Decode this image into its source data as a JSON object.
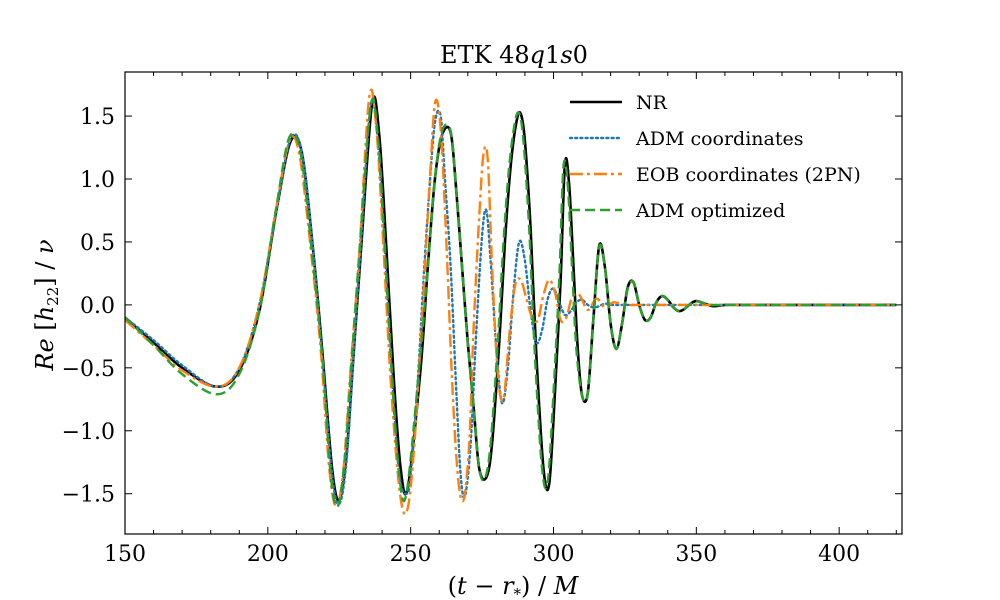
{
  "chart_data": {
    "type": "line",
    "title": "ETK 48q1s0",
    "title_parts": {
      "prefix": "ETK 48",
      "q": "q",
      "mid": "1",
      "s": "s",
      "suffix": "0"
    },
    "xlabel": "(t − r*) / M",
    "ylabel": "Re [h22] / ν",
    "xlabel_parts": {
      "open": "(",
      "t": "t",
      "minus": " − ",
      "r": "r",
      "sub": "*",
      "close": ")",
      "slash": " / ",
      "M": "M"
    },
    "ylabel_parts": {
      "Re": "Re",
      "lb": " [",
      "h": "h",
      "sub": "22",
      "rb": "]",
      "slash": " / ",
      "nu": "ν"
    },
    "xlim": [
      150,
      422
    ],
    "ylim": [
      -1.82,
      1.85
    ],
    "xticks": [
      150,
      200,
      250,
      300,
      350,
      400
    ],
    "xtick_labels": [
      "150",
      "200",
      "250",
      "300",
      "350",
      "400"
    ],
    "yticks": [
      -1.5,
      -1.0,
      -0.5,
      0.0,
      0.5,
      1.0,
      1.5
    ],
    "ytick_labels": [
      "−1.5",
      "−1.0",
      "−0.5",
      "0.0",
      "0.5",
      "1.0",
      "1.5"
    ],
    "legend_position": "top-right",
    "series": [
      {
        "name": "NR",
        "color": "#000000",
        "style": "solid",
        "x": [
          150,
          160,
          170,
          182,
          190,
          197,
          203,
          208,
          212,
          216,
          219,
          222.5,
          225,
          227.5,
          230,
          232.5,
          236.5,
          239,
          241.5,
          244,
          246.5,
          249,
          253.5,
          256,
          258.5,
          261,
          264,
          266,
          268,
          270,
          272,
          274,
          276.5,
          278.5,
          281,
          283,
          285,
          287,
          288.5,
          290,
          292,
          294,
          296.5,
          298.5,
          300.5,
          302.5,
          304,
          305.5,
          307,
          308.5,
          310,
          312,
          314,
          316,
          318,
          320,
          322,
          324,
          326,
          328,
          330,
          332,
          334,
          336,
          338,
          340,
          342,
          344,
          346,
          348,
          350,
          353,
          356,
          360,
          365,
          370,
          380,
          390,
          400,
          410,
          420
        ],
        "y": [
          -0.1,
          -0.3,
          -0.5,
          -0.65,
          -0.52,
          -0.05,
          0.75,
          1.3,
          1.2,
          0.4,
          -0.35,
          -1.3,
          -1.55,
          -1.2,
          -0.4,
          0.4,
          1.6,
          1.35,
          0.45,
          -0.55,
          -1.3,
          -1.45,
          -0.5,
          0.3,
          1.0,
          1.35,
          1.37,
          0.9,
          0.3,
          -0.3,
          -0.8,
          -1.3,
          -1.37,
          -1.1,
          -0.3,
          0.5,
          1.1,
          1.45,
          1.52,
          1.3,
          0.6,
          -0.4,
          -1.3,
          -1.42,
          -0.7,
          0.2,
          1.12,
          0.95,
          0.3,
          -0.35,
          -0.72,
          -0.7,
          -0.1,
          0.47,
          0.3,
          -0.15,
          -0.35,
          -0.15,
          0.14,
          0.18,
          0.0,
          -0.12,
          -0.1,
          0.02,
          0.07,
          0.04,
          -0.02,
          -0.05,
          -0.03,
          0.01,
          0.03,
          0.01,
          -0.01,
          0.0,
          0.0,
          0.0,
          0.0,
          0.0,
          0.0,
          0.0,
          0.0
        ]
      },
      {
        "name": "ADM coordinates",
        "color": "#1f77b4",
        "style": "dotted",
        "x": [
          150,
          160,
          170,
          182,
          190,
          197,
          203,
          208,
          212,
          216,
          219,
          222.5,
          225,
          227.5,
          230,
          232.5,
          236,
          238.5,
          241,
          243.5,
          246,
          248.5,
          250,
          252.5,
          254.5,
          256.5,
          258.5,
          260.5,
          262,
          264,
          266,
          267.5,
          269,
          271,
          273,
          275,
          276.5,
          278,
          280,
          282,
          284,
          286,
          288,
          290,
          292,
          294,
          296,
          298,
          300,
          302,
          304,
          306,
          308,
          310,
          312,
          314,
          316,
          318,
          320,
          325,
          330,
          340,
          350,
          360,
          370,
          380,
          390,
          400,
          410,
          420
        ],
        "y": [
          -0.1,
          -0.28,
          -0.48,
          -0.65,
          -0.5,
          0.0,
          0.75,
          1.32,
          1.2,
          0.4,
          -0.4,
          -1.35,
          -1.58,
          -1.25,
          -0.4,
          0.45,
          1.58,
          1.3,
          0.4,
          -0.6,
          -1.35,
          -1.5,
          -1.35,
          -0.6,
          0.2,
          0.9,
          1.45,
          1.5,
          1.0,
          0.3,
          -0.7,
          -1.35,
          -1.52,
          -1.1,
          -0.2,
          0.55,
          0.75,
          0.35,
          -0.35,
          -0.78,
          -0.5,
          0.1,
          0.5,
          0.35,
          -0.05,
          -0.3,
          -0.2,
          0.05,
          0.13,
          0.02,
          -0.08,
          -0.05,
          0.02,
          0.04,
          0.0,
          -0.02,
          -0.01,
          0.01,
          0.0,
          0.0,
          0.0,
          0.0,
          0.0,
          0.0,
          0.0,
          0.0,
          0.0,
          0.0,
          0.0,
          0.0
        ]
      },
      {
        "name": "EOB coordinates (2PN)",
        "color": "#ff7f0e",
        "style": "dashdot",
        "x": [
          150,
          160,
          170,
          182,
          190,
          197,
          203,
          207.5,
          211,
          215,
          218.5,
          221.5,
          224,
          226.5,
          229,
          232,
          235.5,
          238,
          240.5,
          243,
          246,
          248.5,
          251,
          254,
          256.5,
          258.5,
          260.5,
          262.5,
          264.5,
          266.5,
          268.5,
          270.5,
          272,
          274,
          275.5,
          277,
          278.5,
          280.5,
          282.5,
          284.5,
          286.5,
          288.5,
          290.5,
          292.5,
          294.5,
          296.5,
          298.5,
          300.5,
          302.5,
          304.5,
          306.5,
          309,
          312,
          315,
          318,
          321,
          325,
          330,
          340,
          350,
          360,
          370,
          380,
          390,
          400,
          410,
          420
        ],
        "y": [
          -0.12,
          -0.32,
          -0.52,
          -0.65,
          -0.5,
          0.0,
          0.78,
          1.3,
          1.2,
          0.45,
          -0.35,
          -1.3,
          -1.6,
          -1.3,
          -0.5,
          0.4,
          1.65,
          1.4,
          0.45,
          -0.6,
          -1.45,
          -1.65,
          -1.2,
          -0.1,
          0.9,
          1.6,
          1.4,
          0.5,
          -0.6,
          -1.35,
          -1.55,
          -1.1,
          -0.2,
          0.7,
          1.2,
          1.15,
          0.3,
          -0.55,
          -0.75,
          -0.25,
          0.15,
          0.2,
          0.05,
          -0.1,
          -0.12,
          0.08,
          0.2,
          0.1,
          -0.12,
          -0.1,
          0.06,
          0.08,
          -0.04,
          0.05,
          -0.02,
          0.02,
          0.0,
          0.0,
          0.0,
          0.0,
          0.0,
          0.0,
          0.0,
          0.0,
          0.0,
          0.0,
          0.0
        ]
      },
      {
        "name": "ADM optimized",
        "color": "#2ca02c",
        "style": "dashed",
        "x": [
          150,
          160,
          170,
          182,
          190,
          197,
          203,
          207.5,
          211.5,
          215.5,
          219,
          222,
          224.5,
          227,
          229.5,
          232,
          236,
          238.5,
          241,
          243.5,
          246,
          248.5,
          253,
          256,
          258.5,
          261,
          264,
          266,
          268,
          270,
          272,
          274,
          276,
          278,
          280.5,
          282.5,
          284.5,
          286.5,
          288,
          289.5,
          291.5,
          293.5,
          296,
          298,
          300,
          302,
          303.5,
          305,
          306.5,
          308,
          310,
          312,
          314,
          316,
          318,
          320,
          322,
          324,
          326,
          328,
          330,
          332,
          334,
          336,
          338,
          340,
          342,
          344,
          346,
          348,
          350,
          355,
          360,
          370,
          380,
          390,
          400,
          410,
          420
        ],
        "y": [
          -0.1,
          -0.32,
          -0.55,
          -0.71,
          -0.55,
          -0.05,
          0.78,
          1.33,
          1.2,
          0.4,
          -0.4,
          -1.35,
          -1.6,
          -1.2,
          -0.4,
          0.4,
          1.58,
          1.35,
          0.45,
          -0.55,
          -1.35,
          -1.5,
          -0.5,
          0.3,
          1.0,
          1.38,
          1.38,
          0.9,
          0.3,
          -0.3,
          -0.8,
          -1.3,
          -1.38,
          -1.1,
          -0.3,
          0.5,
          1.1,
          1.45,
          1.52,
          1.3,
          0.6,
          -0.4,
          -1.3,
          -1.4,
          -0.7,
          0.2,
          1.1,
          0.95,
          0.3,
          -0.35,
          -0.72,
          -0.7,
          -0.1,
          0.46,
          0.3,
          -0.15,
          -0.35,
          -0.15,
          0.13,
          0.18,
          0.0,
          -0.12,
          -0.1,
          0.02,
          0.07,
          0.04,
          -0.02,
          -0.05,
          -0.03,
          0.01,
          0.03,
          0.0,
          0.0,
          0.0,
          0.0,
          0.0,
          0.0,
          0.0,
          0.0
        ]
      }
    ]
  }
}
